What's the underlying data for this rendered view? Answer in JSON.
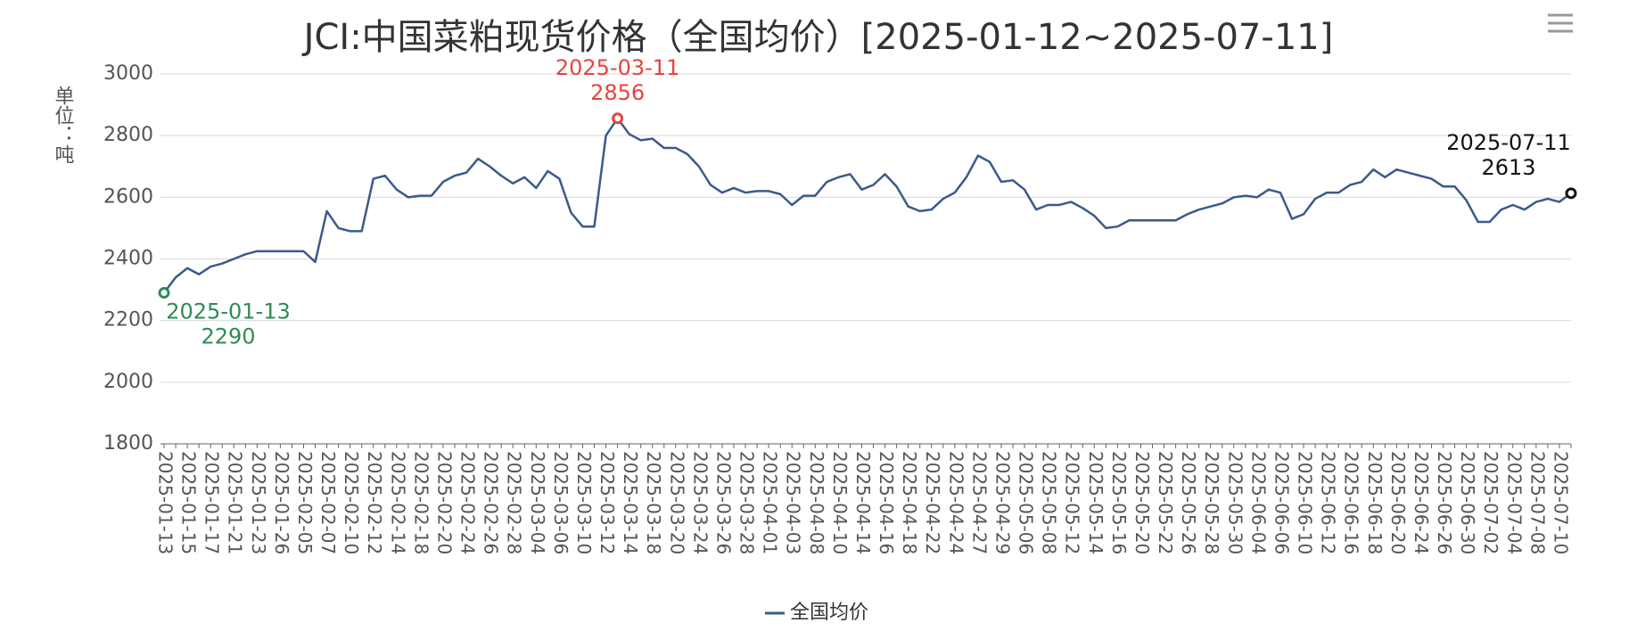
{
  "chart_data": {
    "type": "line",
    "title": "JCI:中国菜粕现货价格（全国均价）[2025-01-12~2025-07-11]",
    "y_label": "单位：吨",
    "categories": [
      "2025-01-13",
      null,
      "2025-01-15",
      null,
      "2025-01-17",
      null,
      "2025-01-21",
      null,
      "2025-01-23",
      null,
      "2025-01-26",
      null,
      "2025-02-05",
      null,
      "2025-02-07",
      null,
      "2025-02-10",
      null,
      "2025-02-12",
      null,
      "2025-02-14",
      null,
      "2025-02-18",
      null,
      "2025-02-20",
      null,
      "2025-02-24",
      null,
      "2025-02-26",
      null,
      "2025-02-28",
      null,
      "2025-03-04",
      null,
      "2025-03-06",
      null,
      "2025-03-10",
      null,
      "2025-03-12",
      null,
      "2025-03-14",
      null,
      "2025-03-18",
      null,
      "2025-03-20",
      null,
      "2025-03-24",
      null,
      "2025-03-26",
      null,
      "2025-03-28",
      null,
      "2025-04-01",
      null,
      "2025-04-03",
      null,
      "2025-04-08",
      null,
      "2025-04-10",
      null,
      "2025-04-14",
      null,
      "2025-04-16",
      null,
      "2025-04-18",
      null,
      "2025-04-22",
      null,
      "2025-04-24",
      null,
      "2025-04-27",
      null,
      "2025-04-29",
      null,
      "2025-05-06",
      null,
      "2025-05-08",
      null,
      "2025-05-12",
      null,
      "2025-05-14",
      null,
      "2025-05-16",
      null,
      "2025-05-20",
      null,
      "2025-05-22",
      null,
      "2025-05-26",
      null,
      "2025-05-28",
      null,
      "2025-05-30",
      null,
      "2025-06-04",
      null,
      "2025-06-06",
      null,
      "2025-06-10",
      null,
      "2025-06-12",
      null,
      "2025-06-16",
      null,
      "2025-06-18",
      null,
      "2025-06-20",
      null,
      "2025-06-24",
      null,
      "2025-06-26",
      null,
      "2025-06-30",
      null,
      "2025-07-02",
      null,
      "2025-07-04",
      null,
      "2025-07-08",
      null,
      "2025-07-10",
      null
    ],
    "series": [
      {
        "name": "全国均价",
        "color": "#3b5a8c",
        "values": [
          2290,
          2340,
          2370,
          2350,
          2375,
          2385,
          2400,
          2415,
          2425,
          2425,
          2425,
          2425,
          2425,
          2390,
          2555,
          2500,
          2490,
          2490,
          2660,
          2670,
          2625,
          2600,
          2605,
          2605,
          2650,
          2670,
          2680,
          2725,
          2700,
          2670,
          2645,
          2665,
          2630,
          2685,
          2660,
          2550,
          2505,
          2505,
          2800,
          2856,
          2805,
          2785,
          2790,
          2760,
          2760,
          2740,
          2700,
          2640,
          2615,
          2630,
          2615,
          2620,
          2620,
          2610,
          2575,
          2605,
          2605,
          2650,
          2665,
          2675,
          2625,
          2640,
          2675,
          2635,
          2570,
          2555,
          2560,
          2595,
          2615,
          2665,
          2735,
          2715,
          2650,
          2655,
          2625,
          2560,
          2575,
          2575,
          2585,
          2565,
          2540,
          2500,
          2505,
          2525,
          2525,
          2525,
          2525,
          2525,
          2545,
          2560,
          2570,
          2580,
          2600,
          2605,
          2600,
          2625,
          2615,
          2530,
          2545,
          2595,
          2615,
          2615,
          2640,
          2650,
          2690,
          2665,
          2690,
          2680,
          2670,
          2660,
          2635,
          2635,
          2590,
          2520,
          2520,
          2560,
          2575,
          2560,
          2585,
          2595,
          2585,
          2613
        ]
      }
    ],
    "annotations": [
      {
        "date": "2025-01-13",
        "value": 2290,
        "color": "#2e8b57"
      },
      {
        "date": "2025-03-11",
        "value": 2856,
        "color": "#e8423f"
      },
      {
        "date": "2025-07-11",
        "value": 2613,
        "color": "#111111"
      }
    ],
    "ylim": [
      1800,
      3000
    ],
    "yticks": [
      1800,
      2000,
      2200,
      2400,
      2600,
      2800,
      3000
    ],
    "grid": true,
    "legend": "bottom"
  }
}
